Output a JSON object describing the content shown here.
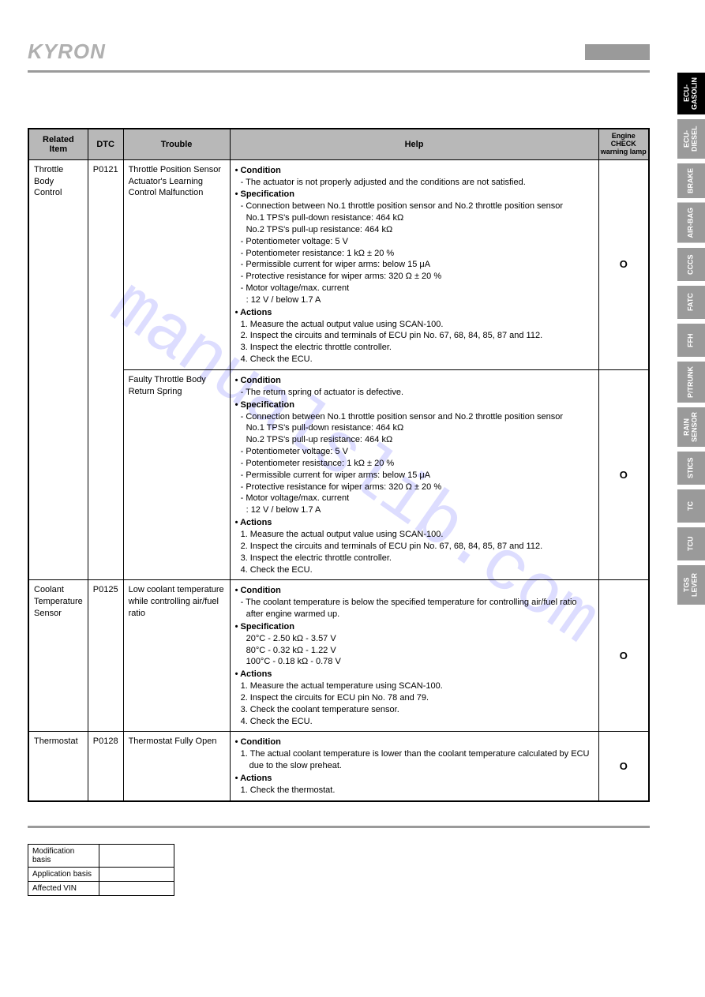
{
  "brand": "KYRON",
  "side_tabs": [
    {
      "label": "ECU-\nGASOLIN",
      "active": true,
      "two_line": true
    },
    {
      "label": "ECU-\nDIESEL",
      "active": false,
      "two_line": true
    },
    {
      "label": "BRAKE",
      "active": false
    },
    {
      "label": "AIR-BAG",
      "active": false
    },
    {
      "label": "CCCS",
      "active": false
    },
    {
      "label": "FATC",
      "active": false
    },
    {
      "label": "FFH",
      "active": false
    },
    {
      "label": "P/TRUNK",
      "active": false
    },
    {
      "label": "RAIN\nSENSOR",
      "active": false,
      "two_line": true
    },
    {
      "label": "STICS",
      "active": false
    },
    {
      "label": "TC",
      "active": false
    },
    {
      "label": "TCU",
      "active": false
    },
    {
      "label": "TGS\nLEVER",
      "active": false,
      "two_line": true
    }
  ],
  "table": {
    "headers": {
      "related": "Related\nItem",
      "dtc": "DTC",
      "trouble": "Trouble",
      "help": "Help",
      "lamp": "Engine CHECK\nwarning lamp"
    },
    "rows": [
      {
        "related": "Throttle\nBody\nControl",
        "related_rowspan": 2,
        "dtc": "P0121",
        "dtc_rowspan": 2,
        "trouble": "Throttle Position Sensor Actuator's Learning Control Malfunction",
        "lamp": "O",
        "help": {
          "condition_label": "Condition",
          "condition_lines": [
            "The actuator is not properly adjusted and the conditions are not satisfied."
          ],
          "spec_label": "Specification",
          "spec_lines": [
            "Connection between No.1 throttle position sensor and No.2 throttle position sensor",
            "No.1 TPS's pull-down resistance: 464 kΩ",
            "No.2 TPS's pull-up resistance: 464 kΩ",
            "Potentiometer voltage: 5 V",
            "Potentiometer resistance: 1 kΩ ± 20 %",
            "Permissible current for wiper arms: below 15 μA",
            "Protective resistance for wiper arms: 320 Ω ± 20 %",
            "Motor voltage/max. current",
            ": 12 V / below 1.7 A"
          ],
          "spec_indent_idx": [
            1,
            2,
            8
          ],
          "actions_label": "Actions",
          "actions_lines": [
            "1. Measure the actual output value using SCAN-100.",
            "2. Inspect the circuits and terminals of ECU pin No. 67, 68, 84, 85, 87 and 112.",
            "3. Inspect the electric throttle controller.",
            "4. Check the ECU."
          ]
        }
      },
      {
        "trouble": "Faulty Throttle Body Return Spring",
        "lamp": "O",
        "help": {
          "condition_label": "Condition",
          "condition_lines": [
            "The return spring of actuator is defective."
          ],
          "spec_label": "Specification",
          "spec_lines": [
            "Connection between No.1 throttle position sensor and No.2 throttle position sensor",
            "No.1 TPS's pull-down resistance: 464 kΩ",
            "No.2 TPS's pull-up resistance: 464 kΩ",
            "Potentiometer voltage: 5 V",
            "Potentiometer resistance: 1 kΩ ± 20 %",
            "Permissible current for wiper arms: below 15 μA",
            "Protective resistance for wiper arms: 320 Ω ± 20 %",
            "Motor voltage/max. current",
            ": 12 V / below 1.7 A"
          ],
          "spec_indent_idx": [
            1,
            2,
            8
          ],
          "actions_label": "Actions",
          "actions_lines": [
            "1. Measure the actual output value using SCAN-100.",
            "2. Inspect the circuits and terminals of ECU pin No. 67, 68, 84, 85, 87 and 112.",
            "3. Inspect the electric throttle controller.",
            "4. Check the ECU."
          ]
        }
      },
      {
        "related": "Coolant\nTemperature\nSensor",
        "dtc": "P0125",
        "trouble": "Low coolant temperature while controlling air/fuel ratio",
        "lamp": "O",
        "help": {
          "condition_label": "Condition",
          "condition_lines": [
            "The coolant temperature is below the specified temperature for controlling air/fuel ratio after engine warmed up."
          ],
          "spec_label": "Specification",
          "spec_plain": [
            "20°C - 2.50 kΩ - 3.57 V",
            "80°C - 0.32 kΩ - 1.22 V",
            "100°C - 0.18 kΩ - 0.78 V"
          ],
          "actions_label": "Actions",
          "actions_lines": [
            "1. Measure the actual temperature using SCAN-100.",
            "2. Inspect the circuits for ECU pin No. 78 and 79.",
            "3. Check the coolant temperature sensor.",
            "4. Check the ECU."
          ]
        }
      },
      {
        "related": "Thermostat",
        "dtc": "P0128",
        "trouble": "Thermostat Fully Open",
        "lamp": "O",
        "help": {
          "condition_label": "Condition",
          "condition_num": [
            "1. The actual coolant temperature is lower than the coolant temperature calculated by ECU due to the slow preheat."
          ],
          "actions_label": "Actions",
          "actions_lines": [
            "1. Check the thermostat."
          ]
        }
      }
    ]
  },
  "footer": {
    "rows": [
      {
        "label": "Modification basis",
        "value": ""
      },
      {
        "label": "Application basis",
        "value": ""
      },
      {
        "label": "Affected VIN",
        "value": ""
      }
    ]
  },
  "watermark": "manualslib.com"
}
